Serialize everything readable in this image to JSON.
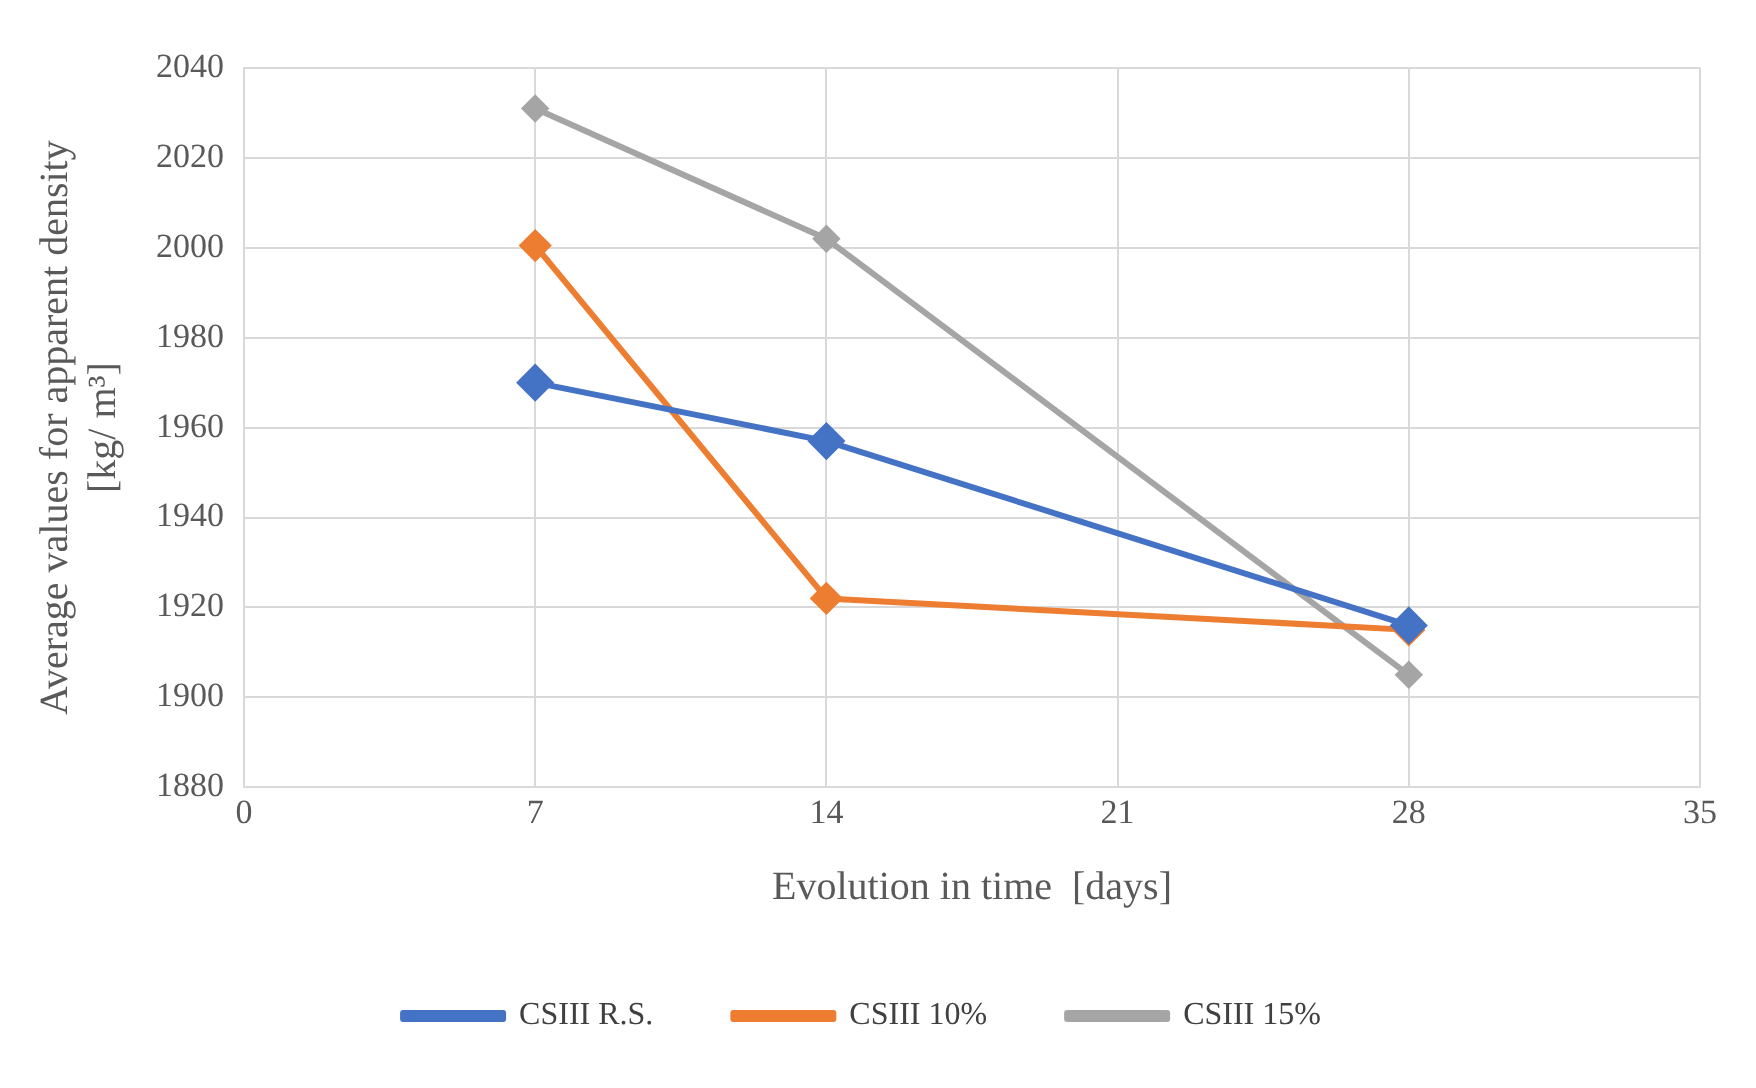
{
  "chart_data": {
    "type": "line",
    "xlabel": "Evolution in time  [days]",
    "ylabel": "Average values for apparent density\n[kg/ m³]",
    "x": [
      7,
      14,
      28
    ],
    "series": [
      {
        "name": "CSIII R.S.",
        "color": "#4472c4",
        "values": [
          1970,
          1957,
          1916
        ]
      },
      {
        "name": "CSIII 10%",
        "color": "#ed7d31",
        "values": [
          2000.5,
          1922,
          1915
        ]
      },
      {
        "name": "CSIII 15%",
        "color": "#a5a5a5",
        "values": [
          2031,
          2002,
          1905
        ]
      }
    ],
    "xlim": [
      0,
      35
    ],
    "xticks": [
      0,
      7,
      14,
      21,
      28,
      35
    ],
    "ylim": [
      1880,
      2040
    ],
    "yticks": [
      1880,
      1900,
      1920,
      1940,
      1960,
      1980,
      2000,
      2020,
      2040
    ],
    "grid": true,
    "legend": "bottom",
    "marker": "diamond",
    "line_style": "solid"
  }
}
